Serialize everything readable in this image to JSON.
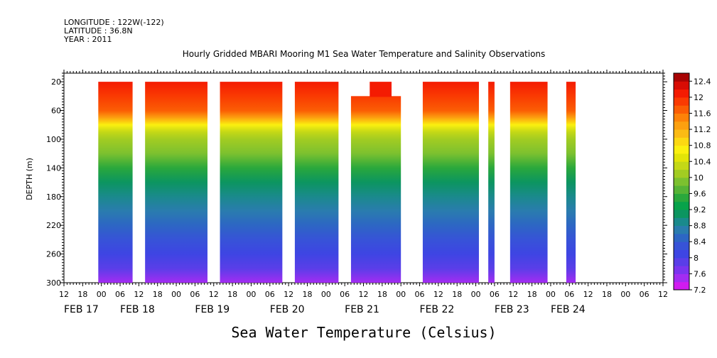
{
  "header": {
    "longitude": "LONGITUDE : 122W(-122)",
    "latitude": "LATITUDE : 36.8N",
    "year": "YEAR : 2011"
  },
  "chart_data": {
    "type": "heatmap",
    "title": "Hourly Gridded MBARI Mooring M1 Sea Water Temperature and Salinity Observations",
    "xlabel": "Sea Water Temperature (Celsius)",
    "ylabel": "DEPTH (m)",
    "x_range_hours": [
      -12,
      180
    ],
    "y_range": [
      8,
      300
    ],
    "y_inverted": true,
    "y_ticks": [
      20,
      60,
      100,
      140,
      180,
      220,
      260,
      300
    ],
    "hour_ticks": [
      {
        "h": -12,
        "label": "12"
      },
      {
        "h": -6,
        "label": "18"
      },
      {
        "h": 0,
        "label": "00"
      },
      {
        "h": 6,
        "label": "06"
      },
      {
        "h": 12,
        "label": "12"
      },
      {
        "h": 18,
        "label": "18"
      },
      {
        "h": 24,
        "label": "00"
      },
      {
        "h": 30,
        "label": "06"
      },
      {
        "h": 36,
        "label": "12"
      },
      {
        "h": 42,
        "label": "18"
      },
      {
        "h": 48,
        "label": "00"
      },
      {
        "h": 54,
        "label": "06"
      },
      {
        "h": 60,
        "label": "12"
      },
      {
        "h": 66,
        "label": "18"
      },
      {
        "h": 72,
        "label": "00"
      },
      {
        "h": 78,
        "label": "06"
      },
      {
        "h": 84,
        "label": "12"
      },
      {
        "h": 90,
        "label": "18"
      },
      {
        "h": 96,
        "label": "00"
      },
      {
        "h": 102,
        "label": "06"
      },
      {
        "h": 108,
        "label": "12"
      },
      {
        "h": 114,
        "label": "18"
      },
      {
        "h": 120,
        "label": "00"
      },
      {
        "h": 126,
        "label": "06"
      },
      {
        "h": 132,
        "label": "12"
      },
      {
        "h": 138,
        "label": "18"
      },
      {
        "h": 144,
        "label": "00"
      },
      {
        "h": 150,
        "label": "06"
      },
      {
        "h": 156,
        "label": "12"
      },
      {
        "h": 162,
        "label": "18"
      },
      {
        "h": 168,
        "label": "00"
      },
      {
        "h": 174,
        "label": "06"
      },
      {
        "h": 180,
        "label": "12"
      }
    ],
    "day_labels": [
      {
        "h": -12,
        "label": "FEB 17"
      },
      {
        "h": 6,
        "label": "FEB 18"
      },
      {
        "h": 30,
        "label": "FEB 19"
      },
      {
        "h": 54,
        "label": "FEB 20"
      },
      {
        "h": 78,
        "label": "FEB 21"
      },
      {
        "h": 102,
        "label": "FEB 22"
      },
      {
        "h": 126,
        "label": "FEB 23"
      },
      {
        "h": 144,
        "label": "FEB 24"
      }
    ],
    "data_blocks": [
      {
        "start": -1,
        "end": 10,
        "top": 20
      },
      {
        "start": 14,
        "end": 34,
        "top": 20
      },
      {
        "start": 38,
        "end": 58,
        "top": 20
      },
      {
        "start": 62,
        "end": 76,
        "top": 20
      },
      {
        "start": 80,
        "end": 96,
        "top": 40,
        "notch": {
          "start": 86,
          "end": 93,
          "top": 20
        }
      },
      {
        "start": 103,
        "end": 121,
        "top": 20
      },
      {
        "start": 124,
        "end": 126,
        "top": 20
      },
      {
        "start": 131,
        "end": 143,
        "top": 20
      },
      {
        "start": 149,
        "end": 152,
        "top": 20
      }
    ],
    "temperature_profile": [
      {
        "depth": 20,
        "temp": 12.1
      },
      {
        "depth": 40,
        "temp": 11.9
      },
      {
        "depth": 60,
        "temp": 11.6
      },
      {
        "depth": 70,
        "temp": 11.2
      },
      {
        "depth": 80,
        "temp": 10.7
      },
      {
        "depth": 90,
        "temp": 10.3
      },
      {
        "depth": 100,
        "temp": 10.1
      },
      {
        "depth": 120,
        "temp": 9.8
      },
      {
        "depth": 140,
        "temp": 9.5
      },
      {
        "depth": 160,
        "temp": 9.1
      },
      {
        "depth": 180,
        "temp": 8.9
      },
      {
        "depth": 200,
        "temp": 8.7
      },
      {
        "depth": 220,
        "temp": 8.5
      },
      {
        "depth": 240,
        "temp": 8.2
      },
      {
        "depth": 260,
        "temp": 8.0
      },
      {
        "depth": 280,
        "temp": 7.8
      },
      {
        "depth": 300,
        "temp": 7.5
      }
    ],
    "colorbar": {
      "levels": [
        7.2,
        7.4,
        7.6,
        7.8,
        8.0,
        8.2,
        8.4,
        8.6,
        8.8,
        9.0,
        9.2,
        9.4,
        9.6,
        9.8,
        10.0,
        10.2,
        10.4,
        10.6,
        10.8,
        11.0,
        11.2,
        11.4,
        11.6,
        11.8,
        12.0,
        12.2,
        12.4,
        12.6
      ],
      "labels": [
        "12.4",
        "12",
        "11.6",
        "11.2",
        "10.8",
        "10.4",
        "10",
        "9.6",
        "9.2",
        "8.8",
        "8.4",
        "8",
        "7.6",
        "7.2"
      ],
      "colors": [
        "#d11bf0",
        "#a32cf2",
        "#7b34ef",
        "#5a3ee8",
        "#3e45e3",
        "#3753d8",
        "#2d66c4",
        "#2a7cae",
        "#1a8a8c",
        "#0c9560",
        "#07a34a",
        "#2aa83c",
        "#56b436",
        "#7cc12f",
        "#a2cc22",
        "#c4d816",
        "#e2e408",
        "#fbf00f",
        "#fcd812",
        "#fbbb14",
        "#fca00f",
        "#fd8208",
        "#fb5d04",
        "#fa3a02",
        "#f41b02",
        "#d80c04",
        "#a80404"
      ]
    }
  }
}
